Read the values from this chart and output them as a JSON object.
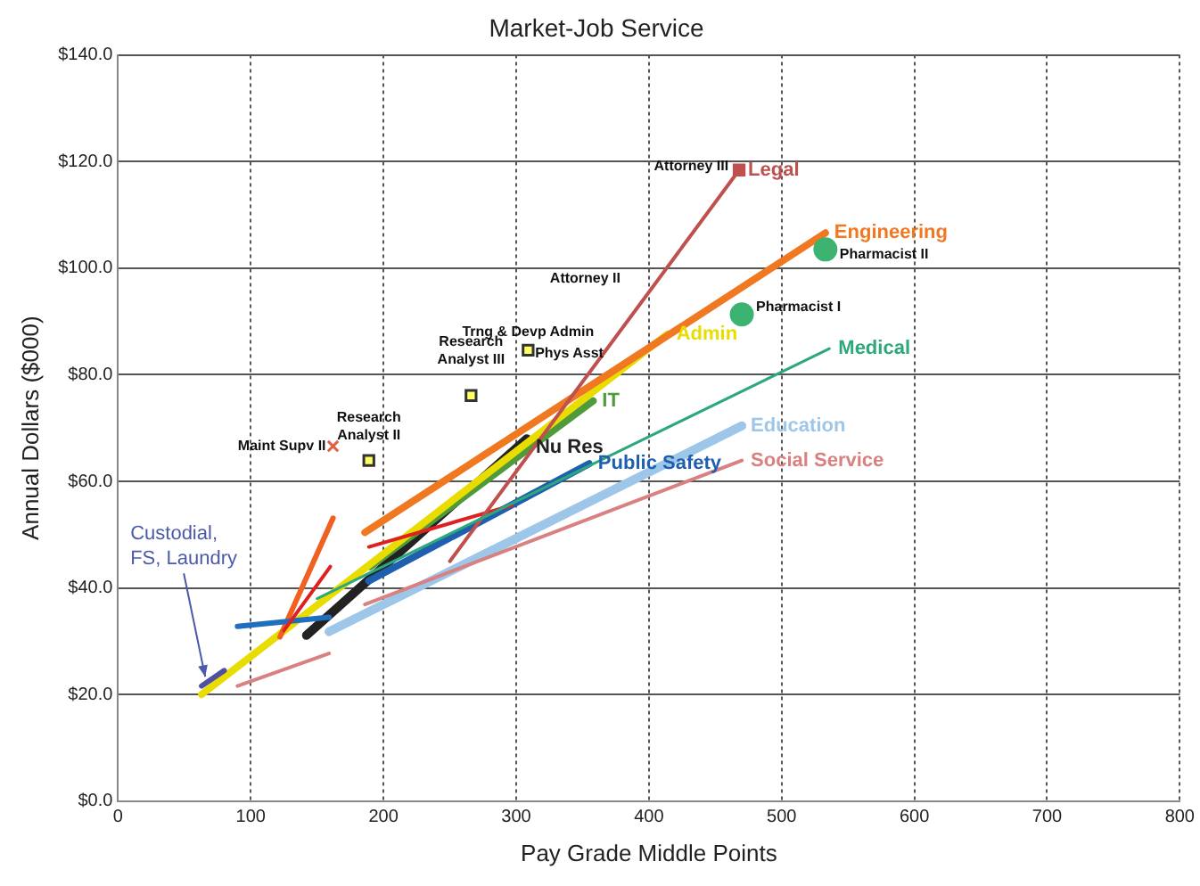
{
  "chart_data": {
    "type": "line",
    "title": "Market-Job Service",
    "xlabel": "Pay Grade Middle Points",
    "ylabel": "Annual Dollars ($000)",
    "xlim": [
      0,
      800
    ],
    "xticks": [
      0,
      100,
      200,
      300,
      400,
      500,
      600,
      700,
      800
    ],
    "ylim": [
      0,
      140
    ],
    "yticks": [
      {
        "value": 0,
        "label": "$0.0"
      },
      {
        "value": 20,
        "label": "$20.0"
      },
      {
        "value": 40,
        "label": "$40.0"
      },
      {
        "value": 60,
        "label": "$60.0"
      },
      {
        "value": 80,
        "label": "$80.0"
      },
      {
        "value": 100,
        "label": "$100.0"
      },
      {
        "value": 120,
        "label": "$120.0"
      },
      {
        "value": 140,
        "label": "$140.0"
      }
    ],
    "grid": true,
    "legend": false,
    "marker": "none",
    "line_style": "solid",
    "series": [
      {
        "name": "Legal",
        "color": "#c0504d",
        "x": [
          250,
          468
        ],
        "values": [
          45,
          118.4
        ]
      },
      {
        "name": "Engineering",
        "color": "#f07820",
        "x": [
          186,
          533
        ],
        "values": [
          50.4,
          106.6
        ]
      },
      {
        "name": "Admin",
        "color": "#e8dc00",
        "x": [
          63,
          414
        ],
        "values": [
          20,
          87.6
        ]
      },
      {
        "name": "Medical",
        "color": "#2ca87a",
        "x": [
          150,
          536
        ],
        "values": [
          38,
          84.9
        ]
      },
      {
        "name": "IT",
        "color": "#4f9a3a",
        "x": [
          190,
          358
        ],
        "values": [
          44,
          75.1
        ]
      },
      {
        "name": "Nu Res",
        "color": "#222222",
        "x": [
          142,
          308
        ],
        "values": [
          31.1,
          68
        ]
      },
      {
        "name": "Public Safety",
        "color": "#1f5fb0",
        "x": [
          189,
          355
        ],
        "values": [
          41.3,
          63.3
        ]
      },
      {
        "name": "Education",
        "color": "#9ec6e8",
        "x": [
          159,
          470
        ],
        "values": [
          31.8,
          70.4
        ]
      },
      {
        "name": "Social Service",
        "color": "#d98080",
        "x": [
          186,
          470
        ],
        "values": [
          36.9,
          63.9
        ]
      },
      {
        "color": "#1f6fc0",
        "x": [
          90,
          159
        ],
        "values": [
          32.8,
          34.5
        ]
      },
      {
        "color": "#d98080",
        "x": [
          90,
          159
        ],
        "values": [
          21.6,
          27.7
        ]
      },
      {
        "color": "#f06020",
        "x": [
          122,
          162
        ],
        "values": [
          30.8,
          53.1
        ]
      },
      {
        "color": "#e02020",
        "x": [
          125,
          160
        ],
        "values": [
          32,
          44
        ]
      },
      {
        "color": "#e02020",
        "x": [
          189,
          297
        ],
        "values": [
          47.7,
          55.5
        ]
      },
      {
        "color": "#5050a0",
        "x": [
          63,
          80
        ],
        "values": [
          21.6,
          24.5
        ]
      },
      {
        "type": "scatter",
        "marker": "square",
        "color": "#c0504d",
        "x": [
          468
        ],
        "values": [
          118.4
        ]
      },
      {
        "type": "scatter",
        "marker": "circle",
        "color": "#3cb371",
        "x": [
          533,
          470
        ],
        "values": [
          103.5,
          91.3
        ]
      },
      {
        "type": "scatter",
        "marker": "square",
        "color": "#ffff66",
        "x": [
          309,
          266,
          189
        ],
        "values": [
          84.6,
          76.1,
          63.9
        ]
      },
      {
        "type": "scatter",
        "marker": "cross",
        "color": "#e06040",
        "x": [
          162
        ],
        "values": [
          66.6
        ]
      }
    ],
    "annotations": [
      {
        "text": "Attorney III",
        "x": 468,
        "y": 118.4
      },
      "Attorney II",
      "Phys Asst",
      {
        "text": "Custodial, FS, Laundry",
        "x": 63,
        "y": 22
      },
      {
        "text": "Pharmacist II",
        "x": 533,
        "y": 103.5
      },
      {
        "text": "Pharmacist I",
        "x": 470,
        "y": 91.3
      },
      {
        "text": "Trng & Devp Admin",
        "x": 309,
        "y": 84.6
      },
      {
        "text": "Research Analyst III",
        "x": 266,
        "y": 76.1
      },
      {
        "text": "Research Analyst II",
        "x": 189,
        "y": 63.9
      },
      {
        "text": "Maint Supv II",
        "x": 162,
        "y": 66.6
      }
    ]
  }
}
